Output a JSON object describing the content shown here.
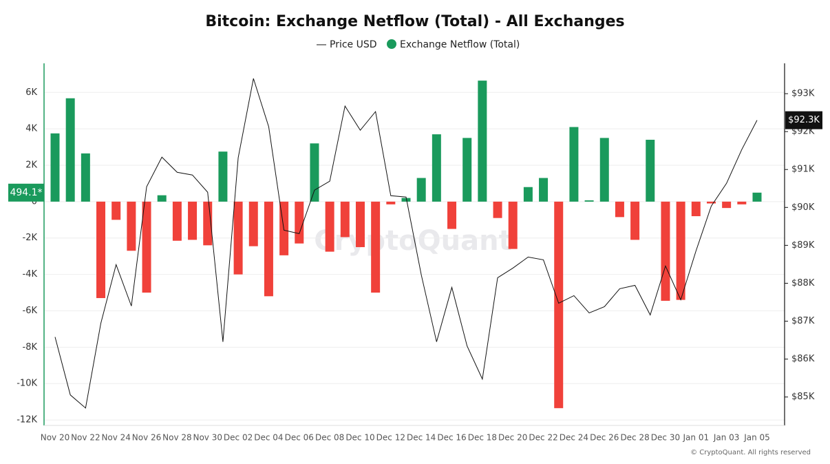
{
  "chart_data": {
    "type": "bar-line",
    "title": "Bitcoin: Exchange Netflow (Total) - All Exchanges",
    "watermark": "CryptoQuant",
    "footer": "© CryptoQuant. All rights reserved",
    "categories": [
      "Nov 20",
      null,
      "Nov 22",
      null,
      "Nov 24",
      null,
      "Nov 26",
      null,
      "Nov 28",
      null,
      "Nov 30",
      null,
      "Dec 02",
      null,
      "Dec 04",
      null,
      "Dec 06",
      null,
      "Dec 08",
      null,
      "Dec 10",
      null,
      "Dec 12",
      null,
      "Dec 14",
      null,
      "Dec 16",
      null,
      "Dec 18",
      null,
      "Dec 20",
      null,
      "Dec 22",
      null,
      "Dec 24",
      null,
      "Dec 26",
      null,
      "Dec 28",
      null,
      "Dec 30",
      null,
      "Jan 01",
      null,
      "Jan 03",
      null,
      "Jan 05"
    ],
    "series": [
      {
        "name": "Price USD",
        "type": "line",
        "axis": "y2",
        "color": "#111111",
        "values": [
          86582,
          85055,
          84709,
          86945,
          88491,
          87400,
          90545,
          91327,
          90927,
          90855,
          90400,
          86455,
          91309,
          93400,
          92127,
          89400,
          89309,
          90455,
          90691,
          92673,
          92036,
          92527,
          90309,
          90273,
          88218,
          86455,
          87891,
          86345,
          85473,
          88145,
          88400,
          88691,
          88618,
          87473,
          87673,
          87218,
          87382,
          87855,
          87945,
          87164,
          88455,
          87564,
          88855,
          90036,
          90636,
          91527,
          92300
        ],
        "last_label": "$92.3K"
      },
      {
        "name": "Exchange Netflow (Total)",
        "type": "bar",
        "color": "#1a9a5c",
        "negative_color": "#f0413a",
        "values": [
          3750,
          5680,
          2650,
          -5300,
          -1000,
          -2700,
          -5000,
          350,
          -2150,
          -2100,
          -2400,
          2750,
          -4000,
          -2450,
          -5200,
          -2950,
          -2300,
          3200,
          -2750,
          -1950,
          -2500,
          -5000,
          -150,
          200,
          1300,
          3700,
          -1500,
          3500,
          6650,
          -900,
          -2600,
          800,
          1300,
          -11350,
          4100,
          70,
          3500,
          -850,
          -2100,
          3400,
          -5450,
          -5400,
          -800,
          -100,
          -350,
          -150,
          494.1
        ],
        "last_label": "494.1*"
      }
    ],
    "ylim": [
      -12300,
      7600
    ],
    "yticks": [
      {
        "value": 6000,
        "label": "6K"
      },
      {
        "value": 4000,
        "label": "4K"
      },
      {
        "value": 2000,
        "label": "2K"
      },
      0,
      {
        "value": -2000,
        "label": "-2K"
      },
      {
        "value": -4000,
        "label": "-4K"
      },
      {
        "value": -6000,
        "label": "-6K"
      },
      {
        "value": -8000,
        "label": "-8K"
      },
      {
        "value": -10000,
        "label": "-10K"
      },
      {
        "value": -12000,
        "label": "-12K"
      }
    ],
    "y2lim": [
      84250,
      93800
    ],
    "y2ticks": [
      {
        "value": 85000,
        "label": "$85K"
      },
      {
        "value": 86000,
        "label": "$86K"
      },
      {
        "value": 87000,
        "label": "$87K"
      },
      {
        "value": 88000,
        "label": "$88K"
      },
      {
        "value": 89000,
        "label": "$89K"
      },
      {
        "value": 90000,
        "label": "$90K"
      },
      {
        "value": 91000,
        "label": "$91K"
      },
      {
        "value": 92000,
        "label": "$92K"
      },
      {
        "value": 93000,
        "label": "$93K"
      }
    ],
    "grid": true
  }
}
